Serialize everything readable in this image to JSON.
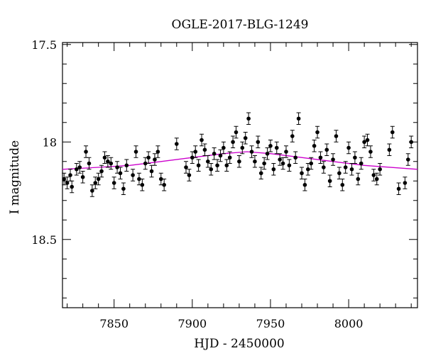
{
  "chart_data": {
    "type": "scatter",
    "title": "OGLE-2017-BLG-1249",
    "xlabel": "HJD - 2450000",
    "ylabel": "I magnitude",
    "xlim": [
      7817,
      8044
    ],
    "ylim": [
      18.85,
      17.49
    ],
    "y_inverted": true,
    "x_ticks": [
      7850,
      7900,
      7950,
      8000
    ],
    "x_tick_labels": [
      "7850",
      "7900",
      "7950",
      "8000"
    ],
    "y_ticks": [
      17.5,
      18.0,
      18.5
    ],
    "y_tick_labels": [
      "17.5",
      "18",
      "18.5"
    ],
    "grid": false,
    "legend": "none",
    "series": [
      {
        "kind": "points_with_errorbars",
        "color": "#000000",
        "points": [
          [
            7818,
            18.19,
            0.03
          ],
          [
            7820,
            18.21,
            0.03
          ],
          [
            7822,
            18.17,
            0.03
          ],
          [
            7823,
            18.23,
            0.03
          ],
          [
            7826,
            18.14,
            0.03
          ],
          [
            7828,
            18.13,
            0.03
          ],
          [
            7830,
            18.18,
            0.03
          ],
          [
            7832,
            18.05,
            0.03
          ],
          [
            7834,
            18.11,
            0.03
          ],
          [
            7836,
            18.25,
            0.03
          ],
          [
            7838,
            18.21,
            0.03
          ],
          [
            7840,
            18.19,
            0.03
          ],
          [
            7842,
            18.15,
            0.03
          ],
          [
            7844,
            18.08,
            0.03
          ],
          [
            7846,
            18.1,
            0.03
          ],
          [
            7848,
            18.11,
            0.03
          ],
          [
            7850,
            18.21,
            0.03
          ],
          [
            7852,
            18.13,
            0.03
          ],
          [
            7854,
            18.16,
            0.03
          ],
          [
            7856,
            18.24,
            0.03
          ],
          [
            7858,
            18.12,
            0.03
          ],
          [
            7862,
            18.17,
            0.03
          ],
          [
            7864,
            18.05,
            0.03
          ],
          [
            7866,
            18.19,
            0.03
          ],
          [
            7868,
            18.22,
            0.03
          ],
          [
            7870,
            18.11,
            0.03
          ],
          [
            7872,
            18.08,
            0.03
          ],
          [
            7874,
            18.15,
            0.03
          ],
          [
            7876,
            18.09,
            0.03
          ],
          [
            7878,
            18.05,
            0.03
          ],
          [
            7880,
            18.19,
            0.03
          ],
          [
            7882,
            18.22,
            0.03
          ],
          [
            7890,
            18.01,
            0.03
          ],
          [
            7896,
            18.13,
            0.03
          ],
          [
            7898,
            18.17,
            0.03
          ],
          [
            7900,
            18.08,
            0.03
          ],
          [
            7902,
            18.05,
            0.03
          ],
          [
            7904,
            18.12,
            0.03
          ],
          [
            7906,
            17.99,
            0.03
          ],
          [
            7908,
            18.04,
            0.03
          ],
          [
            7910,
            18.1,
            0.03
          ],
          [
            7912,
            18.14,
            0.03
          ],
          [
            7914,
            18.06,
            0.03
          ],
          [
            7916,
            18.12,
            0.03
          ],
          [
            7918,
            18.07,
            0.03
          ],
          [
            7920,
            18.03,
            0.03
          ],
          [
            7922,
            18.12,
            0.03
          ],
          [
            7924,
            18.08,
            0.03
          ],
          [
            7926,
            18.0,
            0.03
          ],
          [
            7928,
            17.95,
            0.03
          ],
          [
            7930,
            18.1,
            0.03
          ],
          [
            7932,
            18.03,
            0.03
          ],
          [
            7934,
            17.98,
            0.03
          ],
          [
            7936,
            17.88,
            0.03
          ],
          [
            7938,
            18.05,
            0.03
          ],
          [
            7940,
            18.1,
            0.03
          ],
          [
            7942,
            18.0,
            0.03
          ],
          [
            7944,
            18.16,
            0.03
          ],
          [
            7946,
            18.11,
            0.03
          ],
          [
            7948,
            18.06,
            0.03
          ],
          [
            7950,
            18.02,
            0.03
          ],
          [
            7952,
            18.14,
            0.03
          ],
          [
            7954,
            18.03,
            0.03
          ],
          [
            7956,
            18.09,
            0.03
          ],
          [
            7958,
            18.11,
            0.03
          ],
          [
            7960,
            18.05,
            0.03
          ],
          [
            7962,
            18.12,
            0.03
          ],
          [
            7964,
            17.97,
            0.03
          ],
          [
            7966,
            18.08,
            0.03
          ],
          [
            7968,
            17.88,
            0.03
          ],
          [
            7970,
            18.16,
            0.03
          ],
          [
            7972,
            18.22,
            0.03
          ],
          [
            7974,
            18.14,
            0.03
          ],
          [
            7976,
            18.11,
            0.03
          ],
          [
            7978,
            18.02,
            0.03
          ],
          [
            7980,
            17.95,
            0.03
          ],
          [
            7982,
            18.08,
            0.03
          ],
          [
            7984,
            18.13,
            0.03
          ],
          [
            7986,
            18.04,
            0.03
          ],
          [
            7988,
            18.2,
            0.03
          ],
          [
            7990,
            18.09,
            0.03
          ],
          [
            7992,
            17.97,
            0.03
          ],
          [
            7994,
            18.16,
            0.03
          ],
          [
            7996,
            18.22,
            0.03
          ],
          [
            7998,
            18.13,
            0.03
          ],
          [
            8000,
            18.03,
            0.03
          ],
          [
            8002,
            18.14,
            0.03
          ],
          [
            8004,
            18.08,
            0.03
          ],
          [
            8006,
            18.19,
            0.03
          ],
          [
            8008,
            18.11,
            0.03
          ],
          [
            8010,
            18.0,
            0.03
          ],
          [
            8012,
            17.99,
            0.03
          ],
          [
            8014,
            18.05,
            0.03
          ],
          [
            8016,
            18.17,
            0.03
          ],
          [
            8018,
            18.19,
            0.03
          ],
          [
            8020,
            18.14,
            0.03
          ],
          [
            8026,
            18.04,
            0.03
          ],
          [
            8028,
            17.95,
            0.03
          ],
          [
            8032,
            18.24,
            0.03
          ],
          [
            8036,
            18.21,
            0.03
          ],
          [
            8038,
            18.09,
            0.03
          ],
          [
            8040,
            18.0,
            0.03
          ]
        ]
      },
      {
        "kind": "model_curve",
        "color": "#cc00cc",
        "x": [
          7817,
          7840,
          7860,
          7880,
          7900,
          7920,
          7935,
          7950,
          7970,
          7990,
          8010,
          8044
        ],
        "y": [
          18.14,
          18.13,
          18.12,
          18.1,
          18.08,
          18.06,
          18.05,
          18.06,
          18.08,
          18.1,
          18.12,
          18.14
        ]
      }
    ]
  }
}
